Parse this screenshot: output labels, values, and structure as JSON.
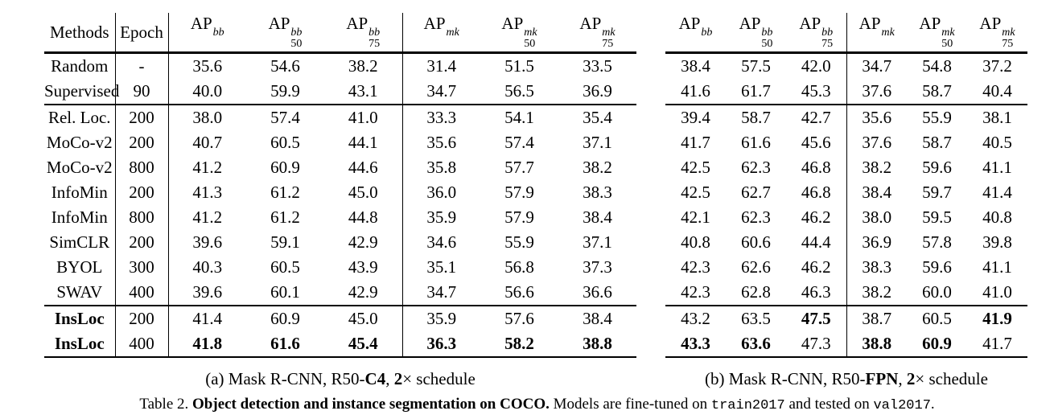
{
  "colors": {
    "background": "#ffffff",
    "text": "#000000",
    "rule": "#000000"
  },
  "header": {
    "methods_label": "Methods",
    "epoch_label": "Epoch",
    "metric_columns": [
      {
        "base": "AP",
        "sup": "bb",
        "sub": ""
      },
      {
        "base": "AP",
        "sup": "bb",
        "sub": "50"
      },
      {
        "base": "AP",
        "sup": "bb",
        "sub": "75"
      },
      {
        "base": "AP",
        "sup": "mk",
        "sub": ""
      },
      {
        "base": "AP",
        "sup": "mk",
        "sub": "50"
      },
      {
        "base": "AP",
        "sup": "mk",
        "sub": "75"
      }
    ]
  },
  "rows": [
    {
      "method": "Random",
      "method_bold": false,
      "epoch": "-",
      "group_start": false,
      "a": [
        "35.6",
        "54.6",
        "38.2",
        "31.4",
        "51.5",
        "33.5"
      ],
      "a_bold": [
        false,
        false,
        false,
        false,
        false,
        false
      ],
      "b": [
        "38.4",
        "57.5",
        "42.0",
        "34.7",
        "54.8",
        "37.2"
      ],
      "b_bold": [
        false,
        false,
        false,
        false,
        false,
        false
      ]
    },
    {
      "method": "Supervised",
      "method_bold": false,
      "epoch": "90",
      "group_start": false,
      "a": [
        "40.0",
        "59.9",
        "43.1",
        "34.7",
        "56.5",
        "36.9"
      ],
      "a_bold": [
        false,
        false,
        false,
        false,
        false,
        false
      ],
      "b": [
        "41.6",
        "61.7",
        "45.3",
        "37.6",
        "58.7",
        "40.4"
      ],
      "b_bold": [
        false,
        false,
        false,
        false,
        false,
        false
      ]
    },
    {
      "method": "Rel. Loc.",
      "method_bold": false,
      "epoch": "200",
      "group_start": true,
      "a": [
        "38.0",
        "57.4",
        "41.0",
        "33.3",
        "54.1",
        "35.4"
      ],
      "a_bold": [
        false,
        false,
        false,
        false,
        false,
        false
      ],
      "b": [
        "39.4",
        "58.7",
        "42.7",
        "35.6",
        "55.9",
        "38.1"
      ],
      "b_bold": [
        false,
        false,
        false,
        false,
        false,
        false
      ]
    },
    {
      "method": "MoCo-v2",
      "method_bold": false,
      "epoch": "200",
      "group_start": false,
      "a": [
        "40.7",
        "60.5",
        "44.1",
        "35.6",
        "57.4",
        "37.1"
      ],
      "a_bold": [
        false,
        false,
        false,
        false,
        false,
        false
      ],
      "b": [
        "41.7",
        "61.6",
        "45.6",
        "37.6",
        "58.7",
        "40.5"
      ],
      "b_bold": [
        false,
        false,
        false,
        false,
        false,
        false
      ]
    },
    {
      "method": "MoCo-v2",
      "method_bold": false,
      "epoch": "800",
      "group_start": false,
      "a": [
        "41.2",
        "60.9",
        "44.6",
        "35.8",
        "57.7",
        "38.2"
      ],
      "a_bold": [
        false,
        false,
        false,
        false,
        false,
        false
      ],
      "b": [
        "42.5",
        "62.3",
        "46.8",
        "38.2",
        "59.6",
        "41.1"
      ],
      "b_bold": [
        false,
        false,
        false,
        false,
        false,
        false
      ]
    },
    {
      "method": "InfoMin",
      "method_bold": false,
      "epoch": "200",
      "group_start": false,
      "a": [
        "41.3",
        "61.2",
        "45.0",
        "36.0",
        "57.9",
        "38.3"
      ],
      "a_bold": [
        false,
        false,
        false,
        false,
        false,
        false
      ],
      "b": [
        "42.5",
        "62.7",
        "46.8",
        "38.4",
        "59.7",
        "41.4"
      ],
      "b_bold": [
        false,
        false,
        false,
        false,
        false,
        false
      ]
    },
    {
      "method": "InfoMin",
      "method_bold": false,
      "epoch": "800",
      "group_start": false,
      "a": [
        "41.2",
        "61.2",
        "44.8",
        "35.9",
        "57.9",
        "38.4"
      ],
      "a_bold": [
        false,
        false,
        false,
        false,
        false,
        false
      ],
      "b": [
        "42.1",
        "62.3",
        "46.2",
        "38.0",
        "59.5",
        "40.8"
      ],
      "b_bold": [
        false,
        false,
        false,
        false,
        false,
        false
      ]
    },
    {
      "method": "SimCLR",
      "method_bold": false,
      "epoch": "200",
      "group_start": false,
      "a": [
        "39.6",
        "59.1",
        "42.9",
        "34.6",
        "55.9",
        "37.1"
      ],
      "a_bold": [
        false,
        false,
        false,
        false,
        false,
        false
      ],
      "b": [
        "40.8",
        "60.6",
        "44.4",
        "36.9",
        "57.8",
        "39.8"
      ],
      "b_bold": [
        false,
        false,
        false,
        false,
        false,
        false
      ]
    },
    {
      "method": "BYOL",
      "method_bold": false,
      "epoch": "300",
      "group_start": false,
      "a": [
        "40.3",
        "60.5",
        "43.9",
        "35.1",
        "56.8",
        "37.3"
      ],
      "a_bold": [
        false,
        false,
        false,
        false,
        false,
        false
      ],
      "b": [
        "42.3",
        "62.6",
        "46.2",
        "38.3",
        "59.6",
        "41.1"
      ],
      "b_bold": [
        false,
        false,
        false,
        false,
        false,
        false
      ]
    },
    {
      "method": "SWAV",
      "method_bold": false,
      "epoch": "400",
      "group_start": false,
      "a": [
        "39.6",
        "60.1",
        "42.9",
        "34.7",
        "56.6",
        "36.6"
      ],
      "a_bold": [
        false,
        false,
        false,
        false,
        false,
        false
      ],
      "b": [
        "42.3",
        "62.8",
        "46.3",
        "38.2",
        "60.0",
        "41.0"
      ],
      "b_bold": [
        false,
        false,
        false,
        false,
        false,
        false
      ]
    },
    {
      "method": "InsLoc",
      "method_bold": true,
      "epoch": "200",
      "group_start": true,
      "a": [
        "41.4",
        "60.9",
        "45.0",
        "35.9",
        "57.6",
        "38.4"
      ],
      "a_bold": [
        false,
        false,
        false,
        false,
        false,
        false
      ],
      "b": [
        "43.2",
        "63.5",
        "47.5",
        "38.7",
        "60.5",
        "41.9"
      ],
      "b_bold": [
        false,
        false,
        true,
        false,
        false,
        true
      ]
    },
    {
      "method": "InsLoc",
      "method_bold": true,
      "epoch": "400",
      "group_start": false,
      "a": [
        "41.8",
        "61.6",
        "45.4",
        "36.3",
        "58.2",
        "38.8"
      ],
      "a_bold": [
        true,
        true,
        true,
        true,
        true,
        true
      ],
      "b": [
        "43.3",
        "63.6",
        "47.3",
        "38.8",
        "60.9",
        "41.7"
      ],
      "b_bold": [
        true,
        true,
        false,
        true,
        true,
        false
      ]
    }
  ],
  "subcaptions": {
    "a": [
      {
        "text": "(a) Mask R-CNN, R50-",
        "style": "normal"
      },
      {
        "text": "C4",
        "style": "bold"
      },
      {
        "text": ", ",
        "style": "normal"
      },
      {
        "text": "2",
        "style": "bold"
      },
      {
        "text": "× schedule",
        "style": "normal"
      }
    ],
    "b": [
      {
        "text": "(b) Mask R-CNN, R50-",
        "style": "normal"
      },
      {
        "text": "FPN",
        "style": "bold"
      },
      {
        "text": ", ",
        "style": "normal"
      },
      {
        "text": "2",
        "style": "bold"
      },
      {
        "text": "× schedule",
        "style": "normal"
      }
    ]
  },
  "table_caption": [
    {
      "text": "Table 2. ",
      "style": "normal"
    },
    {
      "text": "Object detection and instance segmentation on COCO.",
      "style": "bold"
    },
    {
      "text": " Models are fine-tuned on ",
      "style": "normal"
    },
    {
      "text": "train2017",
      "style": "mono"
    },
    {
      "text": " and tested on ",
      "style": "normal"
    },
    {
      "text": "val2017",
      "style": "mono"
    },
    {
      "text": ".",
      "style": "normal"
    }
  ]
}
